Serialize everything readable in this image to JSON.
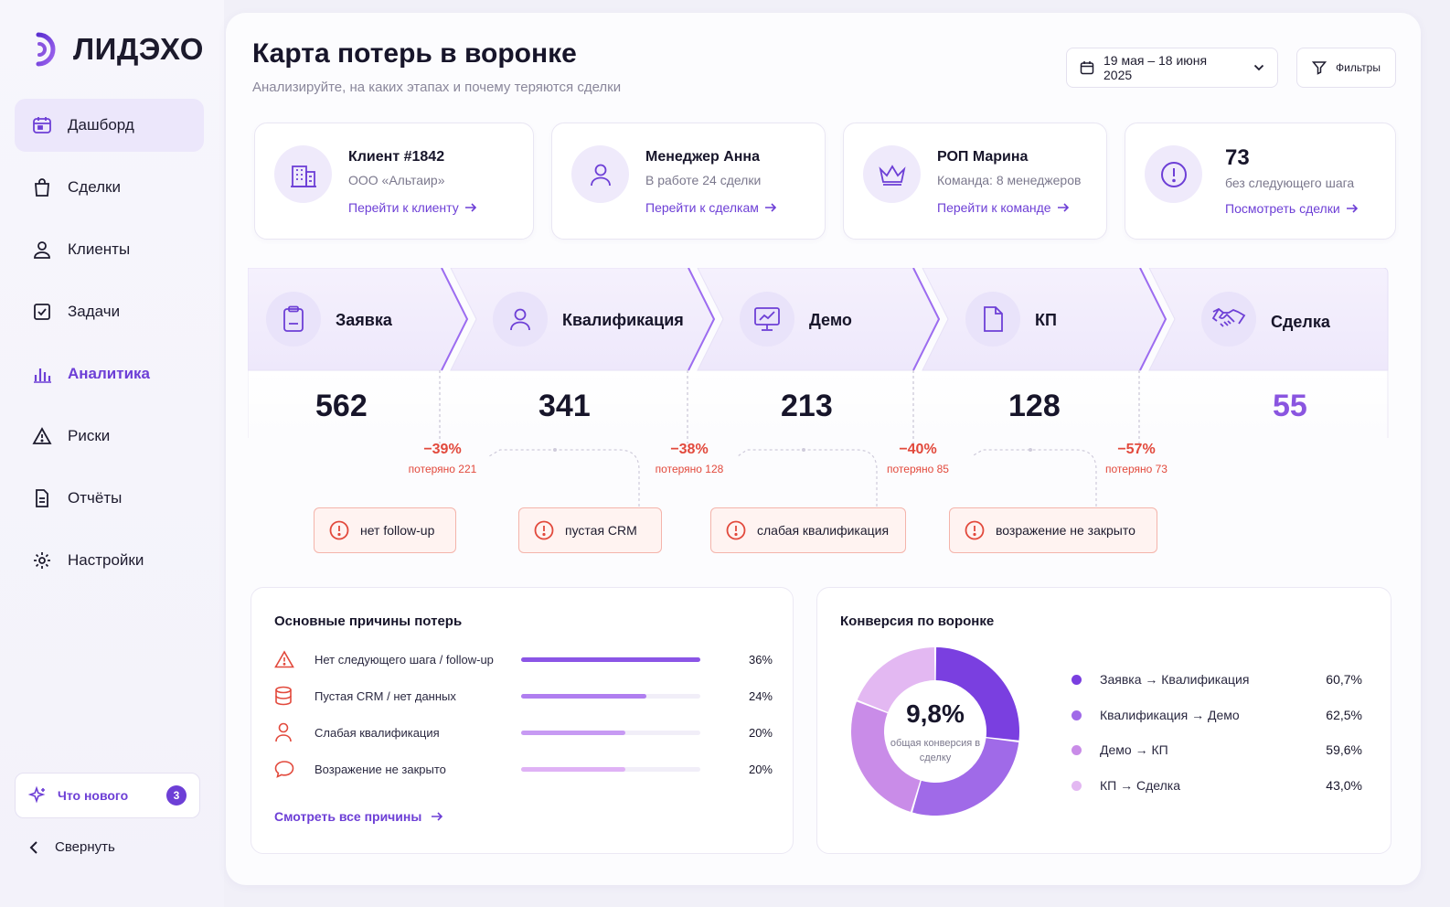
{
  "brand": {
    "name": "ЛИДЭХО",
    "accent": "#6d3fd6"
  },
  "sidebar": {
    "items": [
      {
        "label": "Дашборд",
        "icon": "dashboard-icon",
        "active": true
      },
      {
        "label": "Сделки",
        "icon": "bag-icon"
      },
      {
        "label": "Клиенты",
        "icon": "user-icon"
      },
      {
        "label": "Задачи",
        "icon": "checkbox-icon"
      },
      {
        "label": "Аналитика",
        "icon": "bar-chart-icon",
        "accent": true
      },
      {
        "label": "Риски",
        "icon": "warning-icon"
      },
      {
        "label": "Отчёты",
        "icon": "document-icon"
      },
      {
        "label": "Настройки",
        "icon": "gear-icon"
      }
    ],
    "whats_new": {
      "label": "Что нового",
      "count": "3"
    },
    "collapse_label": "Свернуть"
  },
  "header": {
    "title": "Карта потерь в воронке",
    "subtitle": "Анализируйте, на каких этапах и почему теряются сделки",
    "date_range": "19 мая – 18 июня 2025",
    "filters_label": "Фильтры"
  },
  "info_cards": [
    {
      "title": "Клиент #1842",
      "subtitle": "ООО «Альтаир»",
      "link": "Перейти к клиенту",
      "icon": "building-icon"
    },
    {
      "title": "Менеджер Анна",
      "subtitle": "В работе 24 сделки",
      "link": "Перейти к сделкам",
      "icon": "person-icon"
    },
    {
      "title": "РОП Марина",
      "subtitle": "Команда: 8 менеджеров",
      "link": "Перейти к команде",
      "icon": "crown-icon"
    },
    {
      "title": "73",
      "subtitle": "без следующего шага",
      "link": "Посмотреть сделки",
      "icon": "alert-circle-icon"
    }
  ],
  "funnel": {
    "stages": [
      {
        "label": "Заявка",
        "count": "562",
        "icon": "clipboard-icon"
      },
      {
        "label": "Квалификация",
        "count": "341",
        "icon": "person-icon"
      },
      {
        "label": "Демо",
        "count": "213",
        "icon": "monitor-chart-icon"
      },
      {
        "label": "КП",
        "count": "128",
        "icon": "file-icon"
      },
      {
        "label": "Сделка",
        "count": "55",
        "icon": "handshake-icon"
      }
    ],
    "losses": [
      {
        "pct": "−39%",
        "note": "потеряно 221"
      },
      {
        "pct": "−38%",
        "note": "потеряно 128"
      },
      {
        "pct": "−40%",
        "note": "потеряно 85"
      },
      {
        "pct": "−57%",
        "note": "потеряно 73"
      }
    ],
    "risks": [
      {
        "label": "нет follow-up"
      },
      {
        "label": "пустая CRM"
      },
      {
        "label": "слабая квалификация"
      },
      {
        "label": "возражение не закрыто"
      }
    ],
    "colors": {
      "loss": "#e2493c",
      "risk_bg": "#fff3f1",
      "risk_border": "#f4b4ab"
    }
  },
  "reasons": {
    "title": "Основные причины потерь",
    "items": [
      {
        "label": "Нет следующего шага / follow-up",
        "pct": "36%",
        "value": 1.0,
        "color": "#8b55e6",
        "icon": "warning-triangle-icon"
      },
      {
        "label": "Пустая CRM / нет данных",
        "pct": "24%",
        "value": 0.7,
        "color": "#b07ef0",
        "icon": "database-icon"
      },
      {
        "label": "Слабая квалификация",
        "pct": "20%",
        "value": 0.58,
        "color": "#c79af3",
        "icon": "person-icon"
      },
      {
        "label": "Возражение не закрыто",
        "pct": "20%",
        "value": 0.58,
        "color": "#dfb2f5",
        "icon": "chat-bubble-icon"
      }
    ],
    "link": "Смотреть все причины"
  },
  "conversion": {
    "title": "Конверсия по воронке",
    "center_value": "9,8%",
    "center_label": "общая конверсия в сделку",
    "legend": [
      {
        "label": "Заявка → Квалификация",
        "value": "60,7%",
        "color": "#7a3fe0"
      },
      {
        "label": "Квалификация → Демо",
        "value": "62,5%",
        "color": "#a06ae8"
      },
      {
        "label": "Демо → КП",
        "value": "59,6%",
        "color": "#c98ce8"
      },
      {
        "label": "КП → Сделка",
        "value": "43,0%",
        "color": "#e3b8f2"
      }
    ]
  },
  "chart_data": {
    "type": "pie",
    "categories": [
      "Заявка → Квалификация",
      "Квалификация → Демо",
      "Демо → КП",
      "КП → Сделка"
    ],
    "values": [
      60.7,
      62.5,
      59.6,
      43.0
    ],
    "title": "Конверсия по воронке"
  }
}
